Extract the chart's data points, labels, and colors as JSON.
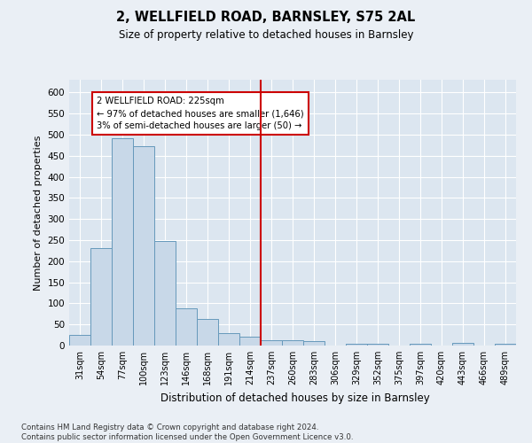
{
  "title": "2, WELLFIELD ROAD, BARNSLEY, S75 2AL",
  "subtitle": "Size of property relative to detached houses in Barnsley",
  "xlabel": "Distribution of detached houses by size in Barnsley",
  "ylabel": "Number of detached properties",
  "categories": [
    "31sqm",
    "54sqm",
    "77sqm",
    "100sqm",
    "123sqm",
    "146sqm",
    "168sqm",
    "191sqm",
    "214sqm",
    "237sqm",
    "260sqm",
    "283sqm",
    "306sqm",
    "329sqm",
    "352sqm",
    "375sqm",
    "397sqm",
    "420sqm",
    "443sqm",
    "466sqm",
    "489sqm"
  ],
  "values": [
    25,
    232,
    492,
    472,
    248,
    88,
    62,
    30,
    22,
    12,
    12,
    10,
    0,
    5,
    5,
    0,
    5,
    0,
    7,
    0,
    5
  ],
  "bar_color": "#c8d8e8",
  "bar_edge_color": "#6699bb",
  "vline_color": "#cc0000",
  "annotation_text": "2 WELLFIELD ROAD: 225sqm\n← 97% of detached houses are smaller (1,646)\n3% of semi-detached houses are larger (50) →",
  "annotation_box_color": "#cc0000",
  "ylim": [
    0,
    630
  ],
  "yticks": [
    0,
    50,
    100,
    150,
    200,
    250,
    300,
    350,
    400,
    450,
    500,
    550,
    600
  ],
  "footnote": "Contains HM Land Registry data © Crown copyright and database right 2024.\nContains public sector information licensed under the Open Government Licence v3.0.",
  "background_color": "#eaeff5",
  "plot_bg_color": "#dce6f0"
}
